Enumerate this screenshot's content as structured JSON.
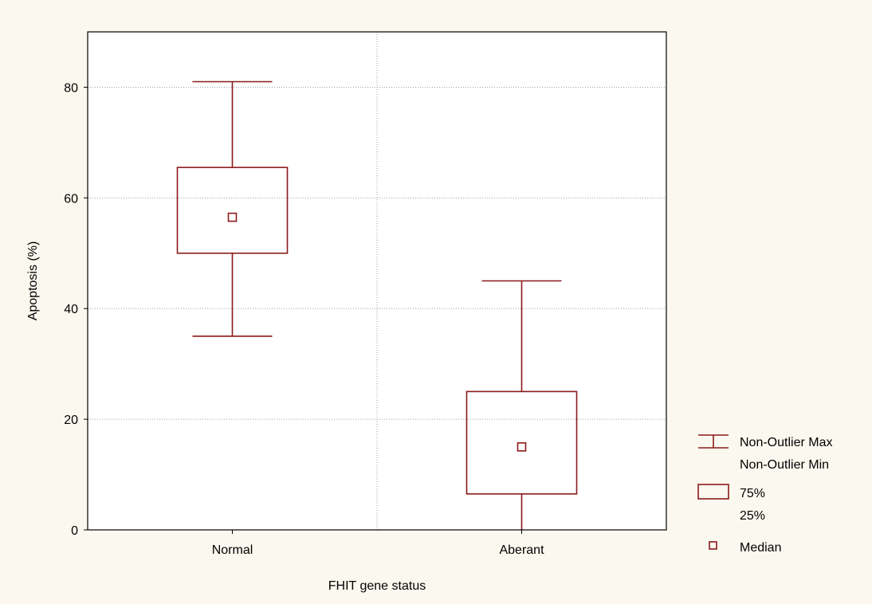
{
  "colors": {
    "background": "#fbf9ef",
    "plot_background": "#ffffff",
    "box": "#8b1a1a",
    "grid": "#a0a0a0",
    "axis": "#000000"
  },
  "chart_data": {
    "type": "boxplot",
    "xlabel": "FHIT gene status",
    "ylabel": "Apoptosis (%)",
    "ylim": [
      0,
      90
    ],
    "y_ticks": [
      0,
      20,
      40,
      60,
      80
    ],
    "grid": true,
    "categories": [
      "Normal",
      "Aberant"
    ],
    "boxes": [
      {
        "category": "Normal",
        "min": 35,
        "q1": 50,
        "median": 56.5,
        "q3": 65.5,
        "max": 81
      },
      {
        "category": "Aberant",
        "min": 0,
        "q1": 6.5,
        "median": 15,
        "q3": 25,
        "max": 45
      }
    ],
    "legend": {
      "placement": "right",
      "whisker_labels": [
        "Non-Outlier Max",
        "Non-Outlier Min"
      ],
      "box_labels": [
        "75%",
        "25%"
      ],
      "median_label": "Median"
    }
  }
}
